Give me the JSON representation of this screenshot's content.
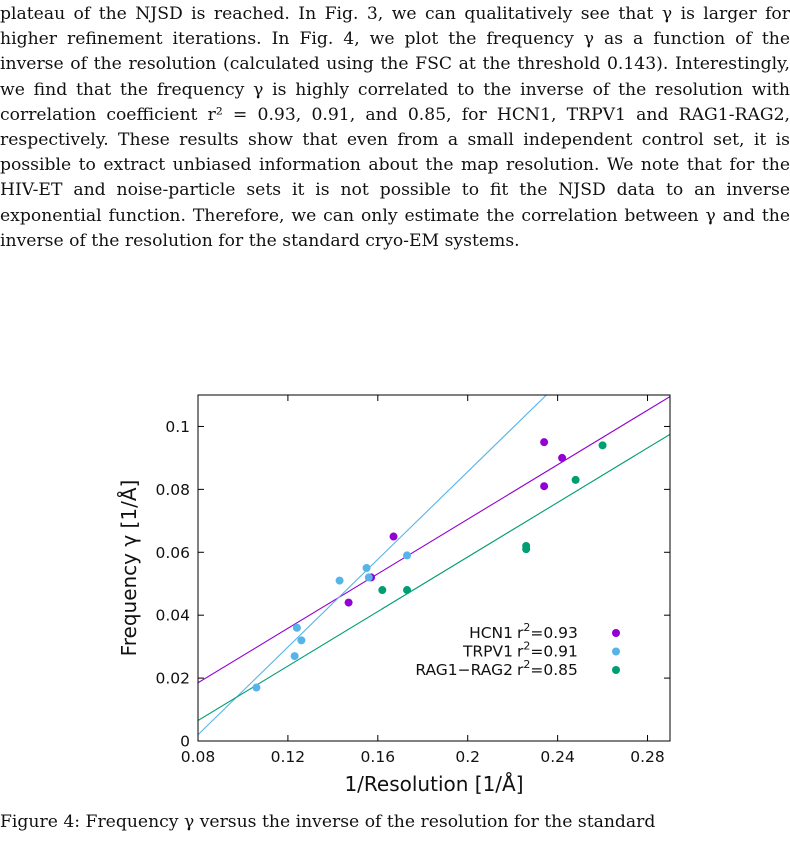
{
  "body_text": "plateau of the NJSD is reached. In Fig. 3, we can qualitatively see that γ is larger for higher refinement iterations. In Fig. 4, we plot the frequency γ as a function of the inverse of the resolution (calculated using the FSC at the threshold 0.143). Interestingly, we find that the frequency γ is highly correlated to the inverse of the resolution with correlation coefficient r² = 0.93, 0.91, and 0.85, for HCN1, TRPV1 and RAG1-RAG2, respectively. These results show that even from a small independent control set, it is possible to extract unbiased information about the map resolution. We note that for the HIV-ET and noise-particle sets it is not possible to fit the NJSD data to an inverse exponential function. Therefore, we can only estimate the correlation between γ and the inverse of the resolution for the standard cryo-EM systems.",
  "caption_text": "Figure 4: Frequency γ versus the inverse of the resolution for the standard",
  "chart_data": {
    "type": "scatter",
    "title": "",
    "xlabel": "1/Resolution [1/Å]",
    "ylabel": "Frequency γ [1/Å]",
    "xlim": [
      0.08,
      0.29
    ],
    "ylim": [
      0,
      0.11
    ],
    "xticks": [
      0.08,
      0.12,
      0.16,
      0.2,
      0.24,
      0.28
    ],
    "yticks": [
      0,
      0.02,
      0.04,
      0.06,
      0.08,
      0.1
    ],
    "xtick_labels": [
      "0.08",
      "0.12",
      "0.16",
      "0.2",
      "0.24",
      "0.28"
    ],
    "ytick_labels": [
      "0",
      "0.02",
      "0.04",
      "0.06",
      "0.08",
      "0.1"
    ],
    "grid": false,
    "legend_position": "bottom-right",
    "series": [
      {
        "name": "HCN1",
        "r2_label": "r",
        "r2_value": "=0.93",
        "color": "#9400d3",
        "points": [
          [
            0.147,
            0.044
          ],
          [
            0.157,
            0.052
          ],
          [
            0.167,
            0.065
          ],
          [
            0.234,
            0.081
          ],
          [
            0.234,
            0.095
          ],
          [
            0.242,
            0.09
          ]
        ],
        "fit": [
          [
            0.08,
            0.0185
          ],
          [
            0.29,
            0.1095
          ]
        ]
      },
      {
        "name": "TRPV1",
        "r2_label": "r",
        "r2_value": "=0.91",
        "color": "#56b4e9",
        "points": [
          [
            0.106,
            0.017
          ],
          [
            0.123,
            0.027
          ],
          [
            0.124,
            0.036
          ],
          [
            0.126,
            0.032
          ],
          [
            0.143,
            0.051
          ],
          [
            0.155,
            0.055
          ],
          [
            0.156,
            0.052
          ],
          [
            0.173,
            0.059
          ]
        ],
        "fit": [
          [
            0.08,
            0.002
          ],
          [
            0.235,
            0.11
          ]
        ]
      },
      {
        "name": "RAG1−RAG2",
        "r2_label": "r",
        "r2_value": "=0.85",
        "color": "#009e73",
        "points": [
          [
            0.162,
            0.048
          ],
          [
            0.173,
            0.048
          ],
          [
            0.226,
            0.061
          ],
          [
            0.226,
            0.062
          ],
          [
            0.248,
            0.083
          ],
          [
            0.26,
            0.094
          ]
        ],
        "fit": [
          [
            0.08,
            0.0065
          ],
          [
            0.29,
            0.0975
          ]
        ]
      }
    ]
  }
}
